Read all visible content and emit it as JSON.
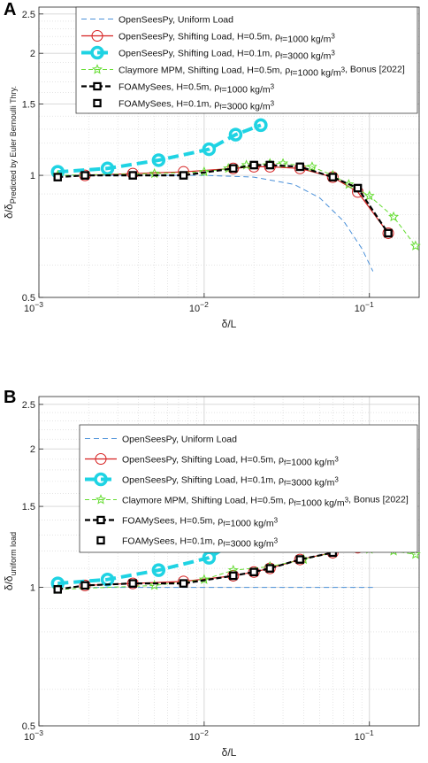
{
  "chart_data": [
    {
      "panel": "A",
      "type": "line",
      "xlabel": "δ/L",
      "ylabel": "δ/δ",
      "ylabel_sub": "Predicted by Euler Bernoulli Thry.",
      "xscale": "log",
      "yscale": "log",
      "xlim": [
        0.001,
        0.2
      ],
      "ylim": [
        0.5,
        2.6
      ],
      "xticks": [
        "10^-3",
        "10^-2",
        "10^-1"
      ],
      "yticks": [
        "0.5",
        "1",
        "1.5",
        "2",
        "2.5"
      ],
      "grid": true,
      "legend_position": "top",
      "series": [
        {
          "name": "OpenSeesPy, Uniform Load",
          "x": [
            0.0013,
            0.003,
            0.006,
            0.01,
            0.02,
            0.035,
            0.05,
            0.07,
            0.09,
            0.105
          ],
          "y": [
            1.0,
            1.0,
            1.0,
            1.0,
            0.99,
            0.95,
            0.88,
            0.77,
            0.66,
            0.58
          ]
        },
        {
          "name": "OpenSeesPy, Shifting Load, H=0.5m, ρf=1000 kg/m3",
          "x": [
            0.0019,
            0.0037,
            0.0075,
            0.015,
            0.02,
            0.025,
            0.038,
            0.06,
            0.085,
            0.13
          ],
          "y": [
            1.0,
            1.01,
            1.02,
            1.04,
            1.05,
            1.05,
            1.04,
            0.99,
            0.91,
            0.72
          ]
        },
        {
          "name": "OpenSeesPy, Shifting Load, H=0.1m, ρf=3000 kg/m3",
          "x": [
            0.0013,
            0.0026,
            0.0053,
            0.0107,
            0.0155,
            0.022
          ],
          "y": [
            1.02,
            1.04,
            1.09,
            1.16,
            1.26,
            1.33
          ]
        },
        {
          "name": "Claymore MPM, Shifting Load, H=0.5m, ρf=1000 kg/m3, Bonus [2022]",
          "x": [
            0.0013,
            0.005,
            0.01,
            0.014,
            0.018,
            0.025,
            0.03,
            0.045,
            0.06,
            0.075,
            0.1,
            0.14,
            0.19
          ],
          "y": [
            1.0,
            1.01,
            1.02,
            1.04,
            1.06,
            1.07,
            1.07,
            1.05,
            1.0,
            0.95,
            0.89,
            0.79,
            0.67
          ]
        },
        {
          "name": "FOAMySees, H=0.5m, ρf=1000 kg/m3",
          "x": [
            0.0013,
            0.0019,
            0.0037,
            0.0075,
            0.015,
            0.02,
            0.025,
            0.038,
            0.06,
            0.085,
            0.13
          ],
          "y": [
            0.99,
            1.0,
            1.0,
            1.0,
            1.04,
            1.06,
            1.06,
            1.05,
            0.99,
            0.93,
            0.72
          ]
        },
        {
          "name": "FOAMySees, H=0.1m, ρf=3000 kg/m3",
          "x": [
            0.0013,
            0.0019,
            0.0037,
            0.0075,
            0.015,
            0.02,
            0.025,
            0.038,
            0.06,
            0.085,
            0.13
          ],
          "y": [
            0.99,
            1.0,
            1.0,
            1.0,
            1.04,
            1.06,
            1.06,
            1.05,
            0.99,
            0.93,
            0.72
          ]
        }
      ]
    },
    {
      "panel": "B",
      "type": "line",
      "xlabel": "δ/L",
      "ylabel": "δ/δ",
      "ylabel_sub": "uniform load",
      "xscale": "log",
      "yscale": "log",
      "xlim": [
        0.001,
        0.2
      ],
      "ylim": [
        0.5,
        2.6
      ],
      "xticks": [
        "10^-3",
        "10^-2",
        "10^-1"
      ],
      "yticks": [
        "0.5",
        "1",
        "1.5",
        "2",
        "2.5"
      ],
      "grid": true,
      "legend_position": "top",
      "series": [
        {
          "name": "OpenSeesPy, Uniform Load",
          "x": [
            0.0019,
            0.005,
            0.01,
            0.02,
            0.05,
            0.105
          ],
          "y": [
            1.0,
            1.0,
            1.0,
            1.0,
            1.0,
            1.0
          ]
        },
        {
          "name": "OpenSeesPy, Shifting Load, H=0.5m, ρf=1000 kg/m3",
          "x": [
            0.0019,
            0.0037,
            0.0075,
            0.015,
            0.02,
            0.025,
            0.038,
            0.06,
            0.085,
            0.13
          ],
          "y": [
            1.01,
            1.02,
            1.03,
            1.06,
            1.08,
            1.1,
            1.15,
            1.19,
            1.22,
            1.25
          ]
        },
        {
          "name": "OpenSeesPy, Shifting Load, H=0.1m, ρf=3000 kg/m3",
          "x": [
            0.0013,
            0.0026,
            0.0053,
            0.0107,
            0.0155,
            0.022
          ],
          "y": [
            1.02,
            1.04,
            1.09,
            1.16,
            1.26,
            1.38
          ]
        },
        {
          "name": "Claymore MPM, Shifting Load, H=0.5m, ρf=1000 kg/m3, Bonus [2022]",
          "x": [
            0.0013,
            0.005,
            0.01,
            0.015,
            0.025,
            0.04,
            0.06,
            0.08,
            0.1,
            0.14,
            0.19
          ],
          "y": [
            0.99,
            1.01,
            1.04,
            1.09,
            1.11,
            1.15,
            1.19,
            1.22,
            1.21,
            1.2,
            1.18
          ]
        },
        {
          "name": "FOAMySees, H=0.5m, ρf=1000 kg/m3",
          "x": [
            0.0013,
            0.0019,
            0.0037,
            0.0075,
            0.015,
            0.02,
            0.025,
            0.038,
            0.06,
            0.085,
            0.13
          ],
          "y": [
            0.99,
            1.01,
            1.02,
            1.02,
            1.06,
            1.08,
            1.1,
            1.15,
            1.19,
            1.22,
            1.23
          ]
        },
        {
          "name": "FOAMySees, H=0.1m, ρf=3000 kg/m3",
          "x": [
            0.0013,
            0.0019,
            0.0037,
            0.0075,
            0.015,
            0.02,
            0.025,
            0.038,
            0.06,
            0.085,
            0.13
          ],
          "y": [
            0.99,
            1.01,
            1.02,
            1.02,
            1.06,
            1.08,
            1.1,
            1.15,
            1.19,
            1.22,
            1.23
          ]
        }
      ]
    }
  ],
  "colors": {
    "uniform": "#4a90d9",
    "shift_05": "#d62020",
    "shift_01": "#1fd3e3",
    "claymore": "#66dd33",
    "foam": "#000000",
    "grid": "#d4d4d4"
  }
}
